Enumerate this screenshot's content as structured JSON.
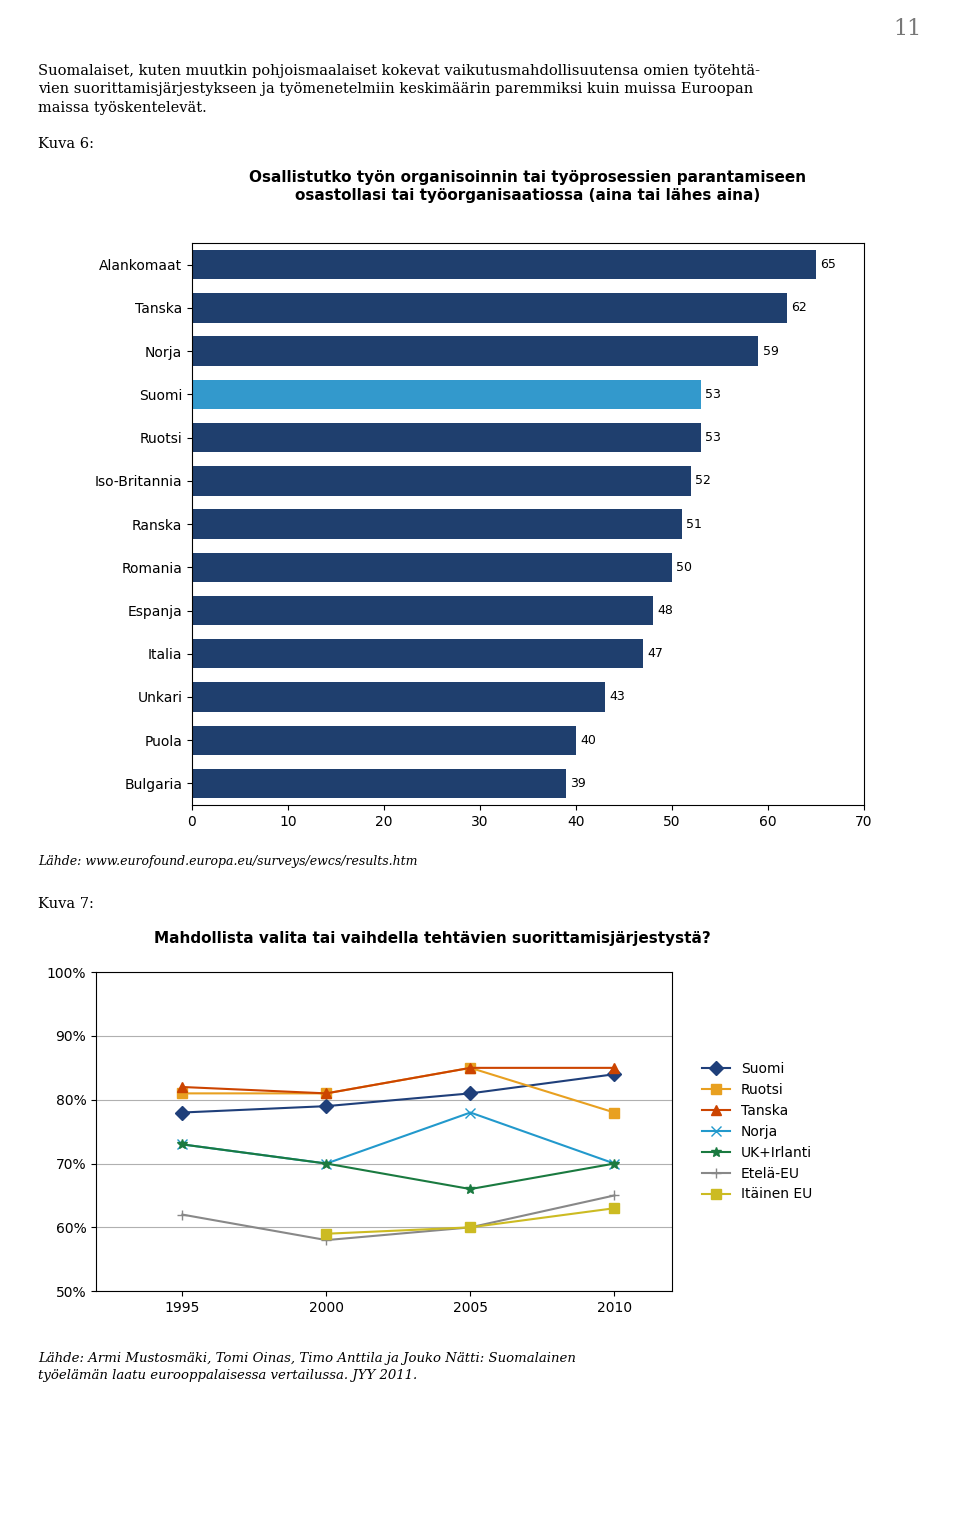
{
  "chart_data": [
    {
      "type": "bar",
      "orientation": "horizontal",
      "title": "Osallistutko työn organisoinnin tai työprosessien parantamiseen\nosastollasi tai työorganisaatiossa (aina tai lähes aina)",
      "annotations": [
        "11",
        "Suomalaiset, kuten muutkin pohjoismaalaiset kokevat vaikutusmahdollisuutensa omien työtehtä-\nvien suorittamisjärjestykseen ja työmenetelmiin keskimäärin paremmiksi kuin muissa Euroopan\nmaissa työskentelevät.",
        "Kuva 6:",
        "Lähde: www.eurofound.europa.eu/surveys/ewcs/results.htm"
      ],
      "categories": [
        "Alankomaat",
        "Tanska",
        "Norja",
        "Suomi",
        "Ruotsi",
        "Iso-Britannia",
        "Ranska",
        "Romania",
        "Espanja",
        "Italia",
        "Unkari",
        "Puola",
        "Bulgaria"
      ],
      "values": [
        65,
        62,
        59,
        53,
        53,
        52,
        51,
        50,
        48,
        47,
        43,
        40,
        39
      ],
      "colors": [
        "#1f3f6e",
        "#1f3f6e",
        "#1f3f6e",
        "#3399cc",
        "#1f3f6e",
        "#1f3f6e",
        "#1f3f6e",
        "#1f3f6e",
        "#1f3f6e",
        "#1f3f6e",
        "#1f3f6e",
        "#1f3f6e",
        "#1f3f6e"
      ],
      "xlim": [
        0,
        70
      ],
      "xticks": [
        0,
        10,
        20,
        30,
        40,
        50,
        60,
        70
      ],
      "data_labels": true,
      "grid": false
    },
    {
      "type": "line",
      "title": "Mahdollista valita tai vaihdella tehtävien suorittamisjärjestystä?",
      "annotations": [
        "Kuva 7:",
        "Lähde: Armi Mustosmäki, Tomi Oinas, Timo Anttila ja Jouko Nätti: Suomalainen\ntyöelämän laatu eurooppalaisessa vertailussa. JYY 2011."
      ],
      "x": [
        1995,
        2000,
        2005,
        2010
      ],
      "xlim": [
        1992,
        2012
      ],
      "xticks": [
        1995,
        2000,
        2005,
        2010
      ],
      "ylim": [
        50,
        100
      ],
      "yticks": [
        {
          "value": 50,
          "label": "50%"
        },
        {
          "value": 60,
          "label": "60%"
        },
        {
          "value": 70,
          "label": "70%"
        },
        {
          "value": 80,
          "label": "80%"
        },
        {
          "value": 90,
          "label": "90%"
        },
        {
          "value": 100,
          "label": "100%"
        }
      ],
      "grid": true,
      "legend": "center left",
      "series": [
        {
          "name": "Suomi",
          "color": "#1f3f7a",
          "marker": "diamond",
          "values": [
            78,
            79,
            81,
            84
          ]
        },
        {
          "name": "Ruotsi",
          "color": "#e8a020",
          "marker": "square",
          "values": [
            81,
            81,
            85,
            78
          ]
        },
        {
          "name": "Tanska",
          "color": "#cc4400",
          "marker": "triangle",
          "values": [
            82,
            81,
            85,
            85
          ]
        },
        {
          "name": "Norja",
          "color": "#2299cc",
          "marker": "x",
          "values": [
            73,
            70,
            78,
            70
          ]
        },
        {
          "name": "UK+Irlanti",
          "color": "#1a7a40",
          "marker": "star",
          "values": [
            73,
            70,
            66,
            70
          ]
        },
        {
          "name": "Etelä-EU",
          "color": "#888888",
          "marker": "plus",
          "values": [
            62,
            58,
            60,
            65
          ]
        },
        {
          "name": "Itäinen EU",
          "color": "#ccbb22",
          "marker": "square",
          "values": [
            null,
            59,
            60,
            63
          ]
        }
      ]
    }
  ]
}
